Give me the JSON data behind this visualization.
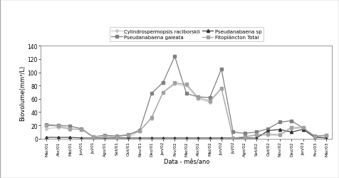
{
  "x_labels": [
    "Mar/01",
    "Abr/01",
    "Mai/01",
    "Jun/01",
    "Jul/01",
    "Ago/01",
    "Set/01",
    "Out/01",
    "Nov/01",
    "Dez/01",
    "Jan/02",
    "Fev/02",
    "Mar/02",
    "Abr/02",
    "Mai/02",
    "Jun/02",
    "Jul/02",
    "Ago/02",
    "Set/02",
    "Out/02",
    "Nov/02",
    "Dez/02",
    "Jan/03",
    "Fev/03",
    "Mar/03"
  ],
  "cylindrospermopsis": [
    15,
    17,
    14,
    14,
    2,
    1,
    2,
    1,
    12,
    30,
    70,
    82,
    80,
    60,
    55,
    75,
    0,
    2,
    5,
    5,
    5,
    15,
    16,
    2,
    4
  ],
  "pseudanabaena_galeata": [
    21,
    20,
    19,
    15,
    3,
    5,
    4,
    6,
    13,
    68,
    85,
    124,
    68,
    63,
    62,
    105,
    10,
    8,
    10,
    15,
    25,
    27,
    16,
    4,
    5
  ],
  "pseudanabaena_sp": [
    2,
    2,
    2,
    1,
    1,
    1,
    1,
    1,
    1,
    1,
    1,
    1,
    1,
    1,
    1,
    1,
    1,
    1,
    1,
    12,
    14,
    10,
    14,
    2,
    1
  ],
  "fitoplancton_total": [
    20,
    19,
    15,
    14,
    3,
    4,
    3,
    5,
    12,
    32,
    70,
    84,
    82,
    62,
    57,
    76,
    1,
    3,
    6,
    7,
    6,
    17,
    17,
    3,
    5
  ],
  "ylabel": "Biovolume(mm³/L)",
  "xlabel": "Data - mês/ano",
  "ylim": [
    0,
    140
  ],
  "yticks": [
    0,
    20,
    40,
    60,
    80,
    100,
    120,
    140
  ],
  "color_cylindro": "#c8c8c8",
  "color_galeata": "#808080",
  "color_sp": "#303030",
  "color_total": "#a0a0a0",
  "legend_cylindro": "Cylindrospermopsis raciborskii",
  "legend_galeata": "Pseudanabaena galeata",
  "legend_sp": "Pseudanabaena sp",
  "legend_total": "Fitoplâncton Total"
}
